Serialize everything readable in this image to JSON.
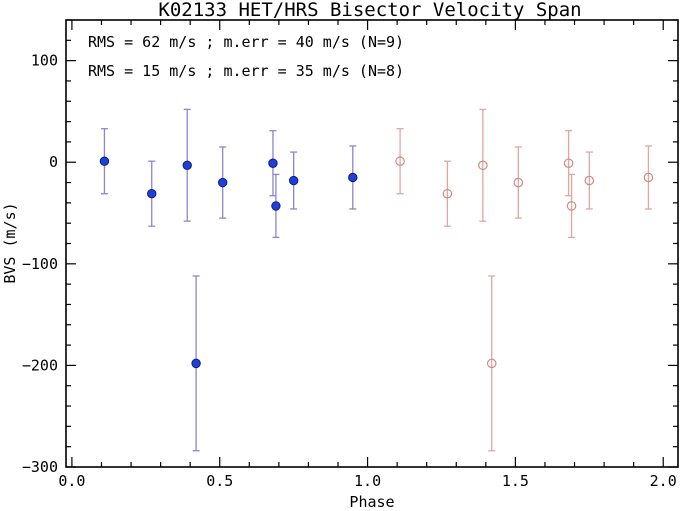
{
  "chart_data": {
    "type": "scatter",
    "title": "K02133 HET/HRS Bisector Velocity Span",
    "xlabel": "Phase",
    "ylabel": "BVS (m/s)",
    "xlim": [
      -0.02,
      2.05
    ],
    "ylim": [
      -300,
      140
    ],
    "xticks": [
      0.0,
      0.5,
      1.0,
      1.5,
      2.0
    ],
    "xtick_labels": [
      "0.0",
      "0.5",
      "1.0",
      "1.5",
      "2.0"
    ],
    "yticks": [
      -300,
      -200,
      -100,
      0,
      100
    ],
    "ytick_labels": [
      "−300",
      "−200",
      "−100",
      "0",
      "100"
    ],
    "grid": false,
    "annotations": [
      "RMS = 62 m/s ; m.err = 40 m/s (N=9)",
      "RMS = 15 m/s ; m.err = 35 m/s (N=8)"
    ],
    "colors": {
      "filled_marker": "#1f3fd6",
      "filled_errorbar": "#8c87c8",
      "open_marker": "#d08a84",
      "open_errorbar": "#dea7a2"
    },
    "series": [
      {
        "marker": "filled",
        "points": [
          {
            "x": 0.11,
            "y": 1,
            "err": 32
          },
          {
            "x": 0.27,
            "y": -31,
            "err": 32
          },
          {
            "x": 0.39,
            "y": -3,
            "err": 55
          },
          {
            "x": 0.42,
            "y": -198,
            "err": 86
          },
          {
            "x": 0.51,
            "y": -20,
            "err": 35
          },
          {
            "x": 0.68,
            "y": -1,
            "err": 32
          },
          {
            "x": 0.69,
            "y": -43,
            "err": 31
          },
          {
            "x": 0.75,
            "y": -18,
            "err": 28
          },
          {
            "x": 0.95,
            "y": -15,
            "err": 31
          }
        ]
      },
      {
        "marker": "open",
        "points": [
          {
            "x": 1.11,
            "y": 1,
            "err": 32
          },
          {
            "x": 1.27,
            "y": -31,
            "err": 32
          },
          {
            "x": 1.39,
            "y": -3,
            "err": 55
          },
          {
            "x": 1.42,
            "y": -198,
            "err": 86
          },
          {
            "x": 1.51,
            "y": -20,
            "err": 35
          },
          {
            "x": 1.68,
            "y": -1,
            "err": 32
          },
          {
            "x": 1.69,
            "y": -43,
            "err": 31
          },
          {
            "x": 1.75,
            "y": -18,
            "err": 28
          },
          {
            "x": 1.95,
            "y": -15,
            "err": 31
          }
        ]
      }
    ]
  }
}
